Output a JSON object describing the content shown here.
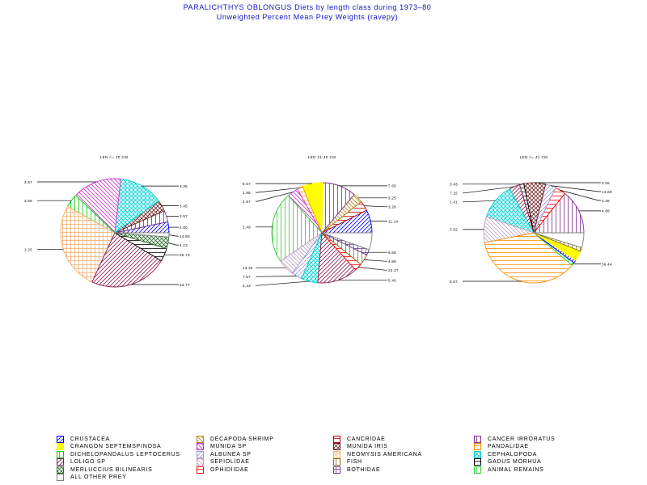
{
  "title": {
    "line1": "PARALICHTHYS OBLONGUS Diets by length class during 1973–80",
    "line2": "Unweighted Percent Mean Prey Weights (ravepy)"
  },
  "chart_data": [
    {
      "type": "pie",
      "title": "LEN <= 20 CM",
      "slices": [
        {
          "label": "CRUSTACEA",
          "value": 3.35
        },
        {
          "label": "CANCER IRRORATUS",
          "value": 3.45
        },
        {
          "label": "MUNIDA IRIS",
          "value": 3.41
        },
        {
          "label": "CEPHALOPODA",
          "value": 13.5
        },
        {
          "label": "MUNIDA SP",
          "value": 14.89
        },
        {
          "label": "DICHELOPANDALUS LEPTOCERUS",
          "value": 4.13
        },
        {
          "label": "NEOMYSIS AMERICANA",
          "value": 26.73
        },
        {
          "label": "LOLIGO SP",
          "value": 23.77
        },
        {
          "label": "GADUS MORHUA",
          "value": 3.97
        },
        {
          "label": "MERLUCCIUS BILINEARIS",
          "value": 3.55
        },
        {
          "label": "ALL OTHER PREY",
          "value": 1.25
        }
      ]
    },
    {
      "type": "pie",
      "title": "LEN 21-40 CM",
      "slices": [
        {
          "label": "CRUSTACEA",
          "value": 7.6
        },
        {
          "label": "CANCRIDAE",
          "value": 3.28
        },
        {
          "label": "DECAPODA SHRIMP",
          "value": 3.25
        },
        {
          "label": "CANCER IRRORATUS",
          "value": 11.14
        },
        {
          "label": "CRANGON SEPTEMSPINOSA",
          "value": 6.68
        },
        {
          "label": "PANDALIDAE",
          "value": 1.89
        },
        {
          "label": "MUNIDA SP",
          "value": 3.59
        },
        {
          "label": "ANIMAL REMAINS",
          "value": 23.37
        },
        {
          "label": "SEPIOLIDAE",
          "value": 5.46
        },
        {
          "label": "ALBUNEA SP",
          "value": 3.43
        },
        {
          "label": "CEPHALOPODA",
          "value": 5.49
        },
        {
          "label": "LOLIGO SP",
          "value": 13.34
        },
        {
          "label": "OPHIDIIDAE",
          "value": 2.49
        },
        {
          "label": "FISH",
          "value": 3.57
        },
        {
          "label": "BOTHIDAE",
          "value": 1.88
        },
        {
          "label": "ALL OTHER PREY",
          "value": 5.57
        }
      ]
    },
    {
      "type": "pie",
      "title": "LEN >= 41 CM",
      "slices": [
        {
          "label": "CANCER IRRORATUS",
          "value": 14.69
        },
        {
          "label": "OPHIDIIDAE",
          "value": 3.55
        },
        {
          "label": "ALBUNEA SP",
          "value": 3.43
        },
        {
          "label": "MUNIDA IRIS",
          "value": 7.15
        },
        {
          "label": "GADUS MORHUA",
          "value": 1.41
        },
        {
          "label": "LOLIGO SP",
          "value": 3.52
        },
        {
          "label": "CEPHALOPODA",
          "value": 12.0
        },
        {
          "label": "SEPIOLIDAE",
          "value": 8.57
        },
        {
          "label": "PANDALIDAE",
          "value": 36.44
        },
        {
          "label": "ANIMAL REMAINS",
          "value": 1.0
        },
        {
          "label": "CRUSTACEA",
          "value": 1.0
        },
        {
          "label": "CRANGON SEPTEMSPINOSA",
          "value": 3.36
        },
        {
          "label": "FISH",
          "value": 1.2
        },
        {
          "label": "ALL OTHER PREY",
          "value": 4.88
        }
      ]
    }
  ],
  "pie_labels": [
    [
      {
        "text": "4.80",
        "slice": 0
      },
      {
        "text": "3.57",
        "slice": 1
      },
      {
        "text": "3.45",
        "slice": 2
      },
      {
        "text": "3.35",
        "slice": 3
      },
      {
        "text": "3.57",
        "slice": 4
      },
      {
        "text": "3.59",
        "slice": 5
      },
      {
        "text": "1.25",
        "slice": 6
      },
      {
        "text": "23.77",
        "slice": 7
      },
      {
        "text": "26.73",
        "slice": 8
      },
      {
        "text": "4.13",
        "slice": 9
      },
      {
        "text": "14.89",
        "slice": 10
      }
    ],
    [
      {
        "text": "11.14",
        "slice": 0
      },
      {
        "text": "3.28",
        "slice": 1
      },
      {
        "text": "3.25",
        "slice": 2
      },
      {
        "text": "7.60",
        "slice": 3
      },
      {
        "text": "6.57",
        "slice": 4
      },
      {
        "text": "1.88",
        "slice": 5
      },
      {
        "text": "2.57",
        "slice": 6
      },
      {
        "text": "2.49",
        "slice": 7
      },
      {
        "text": "13.34",
        "slice": 8
      },
      {
        "text": "7.57",
        "slice": 9
      },
      {
        "text": "3.43",
        "slice": 10
      },
      {
        "text": "5.46",
        "slice": 11
      },
      {
        "text": "23.37",
        "slice": 12
      },
      {
        "text": "4.88",
        "slice": 13
      },
      {
        "text": "6.68",
        "slice": 14
      }
    ],
    [
      {
        "text": "4.88",
        "slice": 0
      },
      {
        "text": "3.36",
        "slice": 1
      },
      {
        "text": "14.69",
        "slice": 2
      },
      {
        "text": "3.55",
        "slice": 3
      },
      {
        "text": "3.43",
        "slice": 4
      },
      {
        "text": "7.15",
        "slice": 5
      },
      {
        "text": "1.41",
        "slice": 6
      },
      {
        "text": "3.52",
        "slice": 7
      },
      {
        "text": "8.57",
        "slice": 8
      },
      {
        "text": "36.44",
        "slice": 9
      }
    ]
  ],
  "legend": [
    {
      "label": "CRUSTACEA",
      "color": "#0000ff"
    },
    {
      "label": "DECAPODA SHRIMP",
      "color": "#b8860b"
    },
    {
      "label": "CANCRIDAE",
      "color": "#c00000"
    },
    {
      "label": "CANCER IRRORATUS",
      "color": "#7b2d8b"
    },
    {
      "label": "CRANGON SEPTEMSPINOSA",
      "color": "#ffff00"
    },
    {
      "label": "MUNIDA SP",
      "color": "#cc33cc"
    },
    {
      "label": "MUNIDA IRIS",
      "color": "#6b2020"
    },
    {
      "label": "PANDALIDAE",
      "color": "#ff8c00"
    },
    {
      "label": "DICHELOPANDALUS LEPTOCERUS",
      "color": "#00cc00"
    },
    {
      "label": "ALBUNEA SP",
      "color": "#9a9ad6"
    },
    {
      "label": "NEOMYSIS AMERICANA",
      "color": "#f0b070"
    },
    {
      "label": "CEPHALOPODA",
      "color": "#00d0d0"
    },
    {
      "label": "LOLIGO SP",
      "color": "#8b1a4a"
    },
    {
      "label": "SEPIOLIDAE",
      "color": "#c0a0c0"
    },
    {
      "label": "FISH",
      "color": "#8b6914"
    },
    {
      "label": "GADUS MORHUA",
      "color": "#000000"
    },
    {
      "label": "MERLUCCIUS BILINEARIS",
      "color": "#2e6b2e"
    },
    {
      "label": "OPHIDIIDAE",
      "color": "#ff0000"
    },
    {
      "label": "BOTHIDAE",
      "color": "#6a3d9a"
    },
    {
      "label": "ANIMAL REMAINS",
      "color": "#33cc33"
    },
    {
      "label": "ALL OTHER PREY",
      "color": "#808080"
    }
  ]
}
